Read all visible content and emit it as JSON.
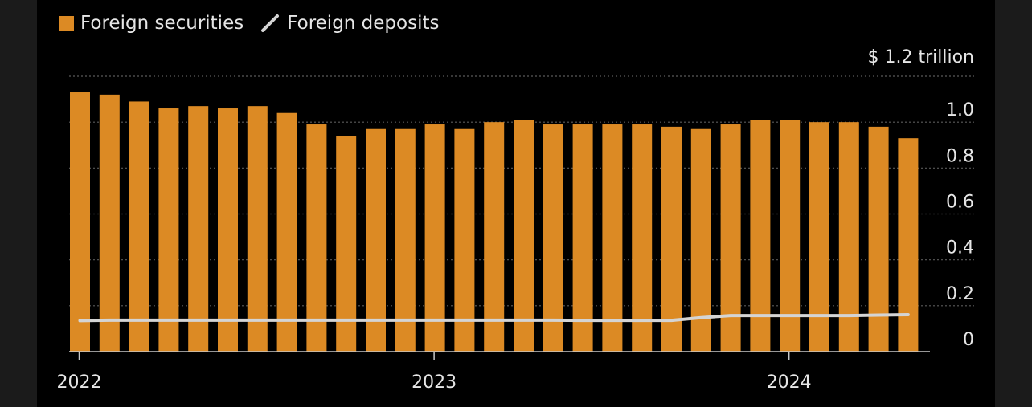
{
  "legend": [
    {
      "label": "Foreign securities",
      "kind": "bar",
      "color": "#dc8a24",
      "icon": "square-swatch-icon"
    },
    {
      "label": "Foreign deposits",
      "kind": "line",
      "color": "#d4d4d4",
      "icon": "line-swatch-icon"
    }
  ],
  "chart_data": {
    "type": "bar",
    "unit_label": "$ 1.2 trillion",
    "ylim": [
      0,
      1.2
    ],
    "y_ticks": [
      {
        "value": 0,
        "label": "0"
      },
      {
        "value": 0.2,
        "label": "0.2"
      },
      {
        "value": 0.4,
        "label": "0.4"
      },
      {
        "value": 0.6,
        "label": "0.6"
      },
      {
        "value": 0.8,
        "label": "0.8"
      },
      {
        "value": 1.0,
        "label": "1.0"
      }
    ],
    "x_ticks": [
      "2022",
      "2023",
      "2024"
    ],
    "grid": true,
    "legend_position": "top-left",
    "series": [
      {
        "name": "Foreign securities",
        "type": "bar",
        "color": "#dc8a24",
        "values": [
          1.13,
          1.12,
          1.09,
          1.06,
          1.07,
          1.06,
          1.07,
          1.04,
          0.99,
          0.94,
          0.97,
          0.97,
          0.99,
          0.97,
          1.0,
          1.01,
          0.99,
          0.99,
          0.99,
          0.99,
          0.98,
          0.97,
          0.99,
          1.01,
          1.01,
          1.0,
          1.0,
          0.98,
          0.93
        ]
      },
      {
        "name": "Foreign deposits",
        "type": "line",
        "color": "#d4d4d4",
        "values": [
          0.135,
          0.137,
          0.137,
          0.137,
          0.137,
          0.137,
          0.137,
          0.137,
          0.137,
          0.137,
          0.137,
          0.137,
          0.137,
          0.137,
          0.137,
          0.137,
          0.137,
          0.136,
          0.136,
          0.136,
          0.136,
          0.148,
          0.157,
          0.157,
          0.157,
          0.157,
          0.157,
          0.159,
          0.161
        ]
      }
    ]
  }
}
